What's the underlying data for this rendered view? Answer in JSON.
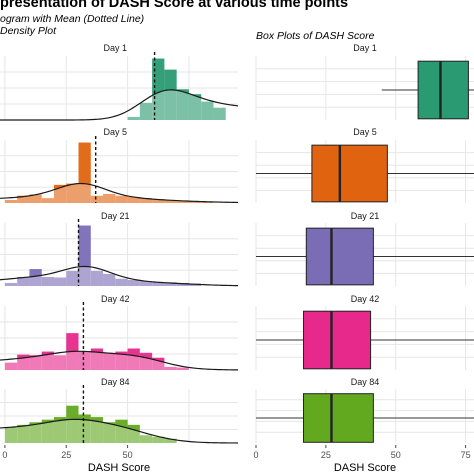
{
  "header": {
    "title": "presentation of DASH Score at various time points",
    "subtitle_left_1": "ogram with Mean (Dotted Line)",
    "subtitle_left_2": "Density Plot",
    "subtitle_right": "Box Plots of DASH Score"
  },
  "colors": {
    "day1": "#2a9a72",
    "day5": "#e06410",
    "day21": "#7a6db6",
    "day42": "#e6298b",
    "day84": "#62a91f",
    "grid": "#e6e6e6",
    "strip_text": "#1a1a1a"
  },
  "chart_data": [
    {
      "type": "bar",
      "title": "ogram with Mean (Dotted Line)",
      "subtitle": "Density Plot",
      "xlabel": "DASH Score",
      "x_ticks": [
        "0",
        "25",
        "50"
      ],
      "xlim": [
        -2,
        95
      ],
      "bin_width": 5,
      "bin_starts": [
        0,
        5,
        10,
        15,
        20,
        25,
        30,
        35,
        40,
        45,
        50,
        55,
        60,
        65,
        70,
        75,
        80,
        85
      ],
      "grid": true,
      "mean_line": "dotted",
      "density_curve": true,
      "series": [
        {
          "name": "Day 1",
          "counts": [
            0,
            0,
            0,
            0,
            0,
            0,
            0,
            0,
            0,
            0,
            0.05,
            0.28,
            1.0,
            0.82,
            0.5,
            0.42,
            0.3,
            0.2
          ],
          "mean": 61
        },
        {
          "name": "Day 5",
          "counts": [
            0.05,
            0.12,
            0.14,
            0.08,
            0.3,
            0.32,
            1.0,
            0.12,
            0.15,
            0.12,
            0.1,
            0.08,
            0.06,
            0.05,
            0.04,
            0.03,
            0.02,
            0
          ],
          "mean": 37
        },
        {
          "name": "Day 21",
          "counts": [
            0.05,
            0.15,
            0.28,
            0.15,
            0.14,
            0.25,
            1.0,
            0.25,
            0.2,
            0.12,
            0.1,
            0.08,
            0.06,
            0.06,
            0.05,
            0.04,
            0,
            0
          ],
          "mean": 30
        },
        {
          "name": "Day 42",
          "counts": [
            0.12,
            0.25,
            0.24,
            0.3,
            0.24,
            0.6,
            0.3,
            0.35,
            0.28,
            0.3,
            0.35,
            0.28,
            0.2,
            0.05,
            0.04,
            0,
            0,
            0
          ],
          "mean": 32
        },
        {
          "name": "Day 84",
          "counts": [
            0.3,
            0.35,
            0.4,
            0.45,
            0.5,
            0.72,
            0.55,
            0.5,
            0.4,
            0.45,
            0.35,
            0.15,
            0.12,
            0.08,
            0,
            0,
            0,
            0
          ],
          "mean": 32
        }
      ]
    },
    {
      "type": "box",
      "title": "Box Plots of DASH Score",
      "xlabel": "DASH Score",
      "x_ticks": [
        "0",
        "25",
        "50",
        "75"
      ],
      "xlim": [
        0,
        78
      ],
      "grid": true,
      "series": [
        {
          "name": "Day 1",
          "whisker_low": 45,
          "q1": 58,
          "median": 66,
          "q3": 76,
          "whisker_high": 90
        },
        {
          "name": "Day 5",
          "whisker_low": 0,
          "q1": 20,
          "median": 30,
          "q3": 47,
          "whisker_high": 78
        },
        {
          "name": "Day 21",
          "whisker_low": 0,
          "q1": 18,
          "median": 27,
          "q3": 42,
          "whisker_high": 78
        },
        {
          "name": "Day 42",
          "whisker_low": 0,
          "q1": 17,
          "median": 27,
          "q3": 41,
          "whisker_high": 78
        },
        {
          "name": "Day 84",
          "whisker_low": 0,
          "q1": 17,
          "median": 27,
          "q3": 42,
          "whisker_high": 78
        }
      ]
    }
  ]
}
